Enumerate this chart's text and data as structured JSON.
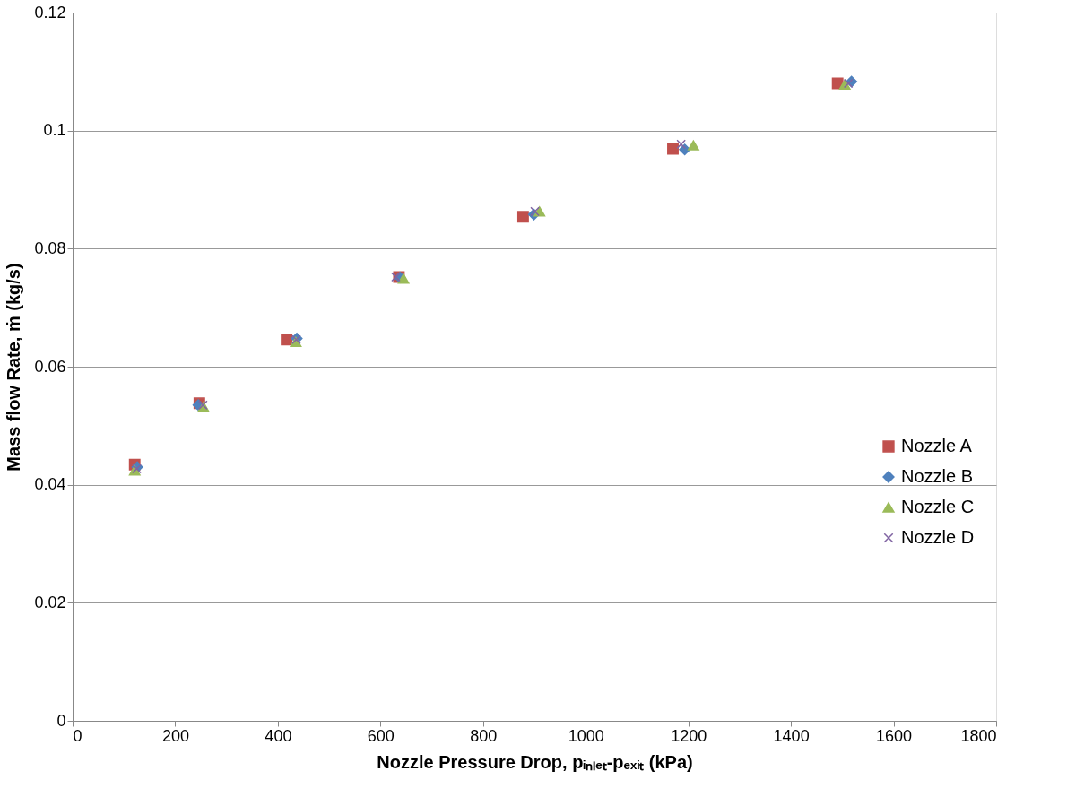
{
  "chart_data": {
    "type": "scatter",
    "xlabel": "Nozzle Pressure Drop, pᵢₙₗₑₜ-pₑₓᵢₜ (kPa)",
    "ylabel": "Mass flow Rate, ṁ (kg/s)",
    "xlim": [
      0,
      1800
    ],
    "xticks": [
      0,
      200,
      400,
      600,
      800,
      1000,
      1200,
      1400,
      1600,
      1800
    ],
    "ylim": [
      0,
      0.12
    ],
    "yticks": [
      0,
      0.02,
      0.04,
      0.06,
      0.08,
      0.1,
      0.12
    ],
    "grid": "y",
    "legend": "right",
    "series": [
      {
        "name": "Nozzle A",
        "color": "#c0504d",
        "marker": "square",
        "x": [
          121,
          247,
          417,
          636,
          878,
          1170,
          1491
        ],
        "values": [
          0.0434,
          0.0538,
          0.0646,
          0.0752,
          0.0854,
          0.0969,
          0.108
        ]
      },
      {
        "name": "Nozzle B",
        "color": "#4f81bd",
        "marker": "diamond",
        "x": [
          126,
          245,
          437,
          638,
          899,
          1193,
          1518
        ],
        "values": [
          0.043,
          0.0535,
          0.0648,
          0.0751,
          0.0858,
          0.0968,
          0.1083
        ]
      },
      {
        "name": "Nozzle C",
        "color": "#9bbb59",
        "marker": "triangle",
        "x": [
          121,
          255,
          435,
          645,
          910,
          1210,
          1505
        ],
        "values": [
          0.0424,
          0.0532,
          0.0642,
          0.0749,
          0.0863,
          0.0975,
          0.1078
        ]
      },
      {
        "name": "Nozzle D",
        "color": "#8064a2",
        "marker": "cross",
        "x": [
          125,
          254,
          436,
          630,
          901,
          1186,
          1512
        ],
        "values": [
          0.0427,
          0.0535,
          0.0646,
          0.0752,
          0.0863,
          0.0977,
          0.108
        ]
      }
    ]
  }
}
